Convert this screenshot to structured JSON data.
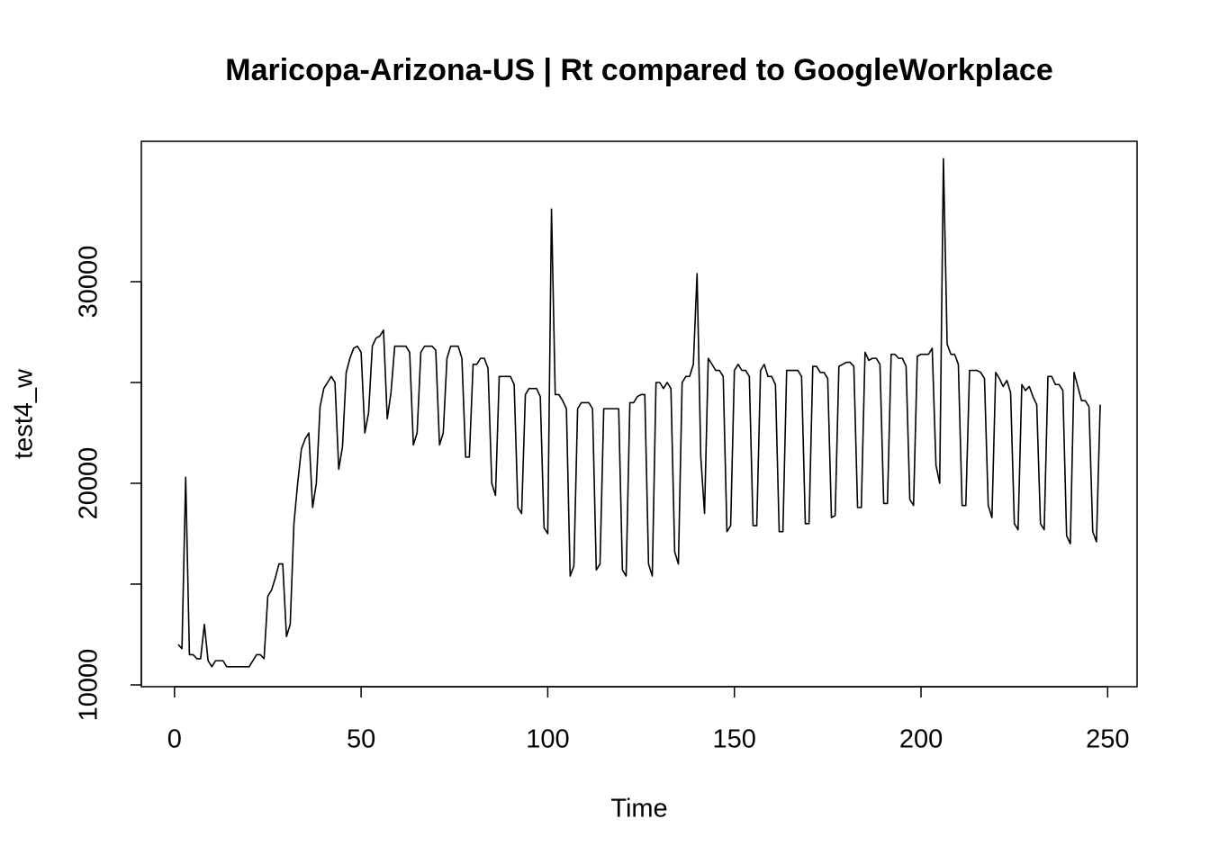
{
  "chart_data": {
    "type": "line",
    "title": "Maricopa-Arizona-US | Rt compared to GoogleWorkplace",
    "x_label": "Time",
    "y_label": "test4_w",
    "color": "#000000",
    "xlim": [
      -8.88,
      257.88
    ],
    "ylim": [
      9911,
      36964
    ],
    "xticks": [
      0,
      50,
      100,
      150,
      200,
      250
    ],
    "yticks": [
      10000,
      20000,
      30000
    ],
    "yticks_unlabeled": [
      15000,
      25000
    ],
    "x": [
      1,
      2,
      3,
      4,
      5,
      6,
      7,
      8,
      9,
      10,
      11,
      12,
      13,
      14,
      15,
      16,
      17,
      18,
      19,
      20,
      21,
      22,
      23,
      24,
      25,
      26,
      27,
      28,
      29,
      30,
      31,
      32,
      33,
      34,
      35,
      36,
      37,
      38,
      39,
      40,
      41,
      42,
      43,
      44,
      45,
      46,
      47,
      48,
      49,
      50,
      51,
      52,
      53,
      54,
      55,
      56,
      57,
      58,
      59,
      60,
      61,
      62,
      63,
      64,
      65,
      66,
      67,
      68,
      69,
      70,
      71,
      72,
      73,
      74,
      75,
      76,
      77,
      78,
      79,
      80,
      81,
      82,
      83,
      84,
      85,
      86,
      87,
      88,
      89,
      90,
      91,
      92,
      93,
      94,
      95,
      96,
      97,
      98,
      99,
      100,
      101,
      102,
      103,
      104,
      105,
      106,
      107,
      108,
      109,
      110,
      111,
      112,
      113,
      114,
      115,
      116,
      117,
      118,
      119,
      120,
      121,
      122,
      123,
      124,
      125,
      126,
      127,
      128,
      129,
      130,
      131,
      132,
      133,
      134,
      135,
      136,
      137,
      138,
      139,
      140,
      141,
      142,
      143,
      144,
      145,
      146,
      147,
      148,
      149,
      150,
      151,
      152,
      153,
      154,
      155,
      156,
      157,
      158,
      159,
      160,
      161,
      162,
      163,
      164,
      165,
      166,
      167,
      168,
      169,
      170,
      171,
      172,
      173,
      174,
      175,
      176,
      177,
      178,
      179,
      180,
      181,
      182,
      183,
      184,
      185,
      186,
      187,
      188,
      189,
      190,
      191,
      192,
      193,
      194,
      195,
      196,
      197,
      198,
      199,
      200,
      201,
      202,
      203,
      204,
      205,
      206,
      207,
      208,
      209,
      210,
      211,
      212,
      213,
      214,
      215,
      216,
      217,
      218,
      219,
      220,
      221,
      222,
      223,
      224,
      225,
      226,
      227,
      228,
      229,
      230,
      231,
      232,
      233,
      234,
      235,
      236,
      237,
      238,
      239,
      240,
      241,
      242,
      243,
      244,
      245,
      246,
      247,
      248
    ],
    "values": [
      12000,
      11800,
      20300,
      11500,
      11500,
      11300,
      11300,
      13000,
      11200,
      10900,
      11200,
      11200,
      11200,
      10900,
      10900,
      10900,
      10900,
      10900,
      10900,
      10900,
      11200,
      11500,
      11500,
      11300,
      14400,
      14700,
      15300,
      16000,
      16000,
      12400,
      13000,
      18000,
      20000,
      21700,
      22200,
      22500,
      18800,
      20000,
      23800,
      24700,
      25000,
      25300,
      25000,
      20700,
      21800,
      25500,
      26200,
      26700,
      26800,
      26500,
      22500,
      23500,
      26800,
      27200,
      27300,
      27600,
      23200,
      24500,
      26800,
      26800,
      26800,
      26800,
      26500,
      21900,
      22500,
      26500,
      26800,
      26800,
      26800,
      26600,
      21900,
      22500,
      26200,
      26800,
      26800,
      26800,
      26200,
      21300,
      21300,
      25900,
      25900,
      26200,
      26200,
      25700,
      20000,
      19400,
      25300,
      25300,
      25300,
      25300,
      24900,
      18800,
      18500,
      24400,
      24700,
      24700,
      24700,
      24300,
      17800,
      17500,
      33600,
      24400,
      24400,
      24100,
      23700,
      15400,
      15900,
      23700,
      24000,
      24000,
      24000,
      23700,
      15700,
      16000,
      23700,
      23700,
      23700,
      23700,
      23700,
      15700,
      15400,
      24000,
      24000,
      24300,
      24400,
      24400,
      16000,
      15400,
      25000,
      25000,
      24700,
      25000,
      24700,
      16600,
      16000,
      25000,
      25300,
      25300,
      25900,
      30400,
      21300,
      18500,
      26200,
      25900,
      25600,
      25600,
      25300,
      17600,
      17900,
      25600,
      25900,
      25600,
      25600,
      25300,
      17900,
      17900,
      25600,
      25900,
      25300,
      25300,
      24900,
      17600,
      17600,
      25600,
      25600,
      25600,
      25600,
      25300,
      18000,
      18000,
      25800,
      25800,
      25500,
      25500,
      25200,
      18300,
      18400,
      25800,
      25900,
      26000,
      26000,
      25800,
      18800,
      18800,
      26500,
      26100,
      26200,
      26200,
      25900,
      19000,
      19000,
      26400,
      26400,
      26200,
      26200,
      25800,
      19200,
      18900,
      26300,
      26400,
      26400,
      26400,
      26700,
      20900,
      20000,
      36100,
      26900,
      26400,
      26400,
      25900,
      18900,
      18900,
      25600,
      25600,
      25600,
      25500,
      25200,
      18900,
      18300,
      25500,
      25200,
      24800,
      25100,
      24500,
      18000,
      17700,
      24900,
      24600,
      24800,
      24300,
      23900,
      18000,
      17700,
      25300,
      25300,
      24900,
      24900,
      24600,
      17400,
      17000,
      25500,
      24800,
      24100,
      24100,
      23800,
      17600,
      17100,
      23900
    ]
  }
}
